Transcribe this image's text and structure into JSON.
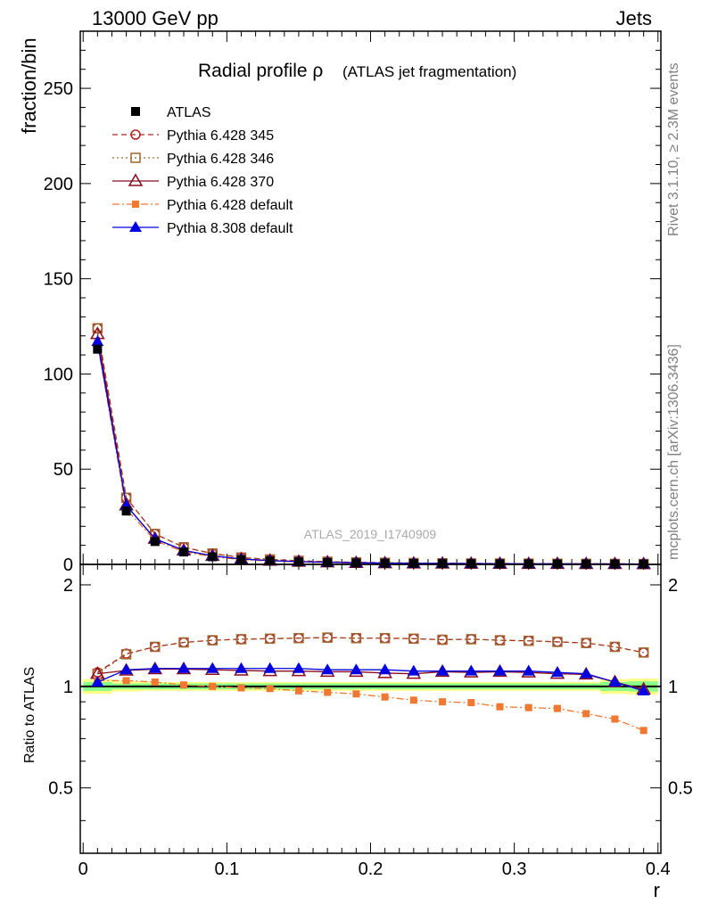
{
  "header": {
    "energy_label": "13000 GeV pp",
    "process_label": "Jets"
  },
  "side_text": {
    "rivet": "Rivet 3.1.10, ≥ 2.3M events",
    "mcplots": "mcplots.cern.ch [arXiv:1306.3436]"
  },
  "watermark": "ATLAS_2019_I1740909",
  "chart_data": [
    {
      "type": "line",
      "title": "Radial profile ρ",
      "subtitle": "(ATLAS jet fragmentation)",
      "xlabel": "r",
      "ylabel": "fraction/bin",
      "xlim": [
        -0.002,
        0.402
      ],
      "ylim": [
        0,
        280
      ],
      "x_ticks": [
        0,
        0.1,
        0.2,
        0.3,
        0.4
      ],
      "x_tick_labels": [
        "0",
        "0.1",
        "0.2",
        "0.3",
        "0.4"
      ],
      "y_ticks": [
        0,
        50,
        100,
        150,
        200,
        250
      ],
      "y_tick_labels": [
        "0",
        "50",
        "100",
        "150",
        "200",
        "250"
      ],
      "legend_position": "top-left",
      "x": [
        0.01,
        0.03,
        0.05,
        0.07,
        0.09,
        0.11,
        0.13,
        0.15,
        0.17,
        0.19,
        0.21,
        0.23,
        0.25,
        0.27,
        0.29,
        0.31,
        0.33,
        0.35,
        0.37,
        0.39
      ],
      "series": [
        {
          "name": "ATLAS",
          "color": "#000000",
          "marker": "square-filled",
          "line": "none",
          "values": [
            113,
            28,
            12,
            6.5,
            4,
            2.5,
            1.8,
            1.3,
            1.0,
            0.75,
            0.6,
            0.5,
            0.42,
            0.36,
            0.32,
            0.28,
            0.25,
            0.22,
            0.2,
            0.18
          ]
        },
        {
          "name": "Pythia 6.428 345",
          "color": "#b02020",
          "marker": "circle-open",
          "line": "dashed",
          "values": [
            124,
            35,
            16,
            9,
            5.7,
            3.6,
            2.6,
            1.9,
            1.4,
            1.05,
            0.86,
            0.71,
            0.59,
            0.51,
            0.45,
            0.39,
            0.35,
            0.3,
            0.27,
            0.23
          ]
        },
        {
          "name": "Pythia 6.428 346",
          "color": "#a0662e",
          "marker": "square-open",
          "line": "dotted",
          "values": [
            124,
            35,
            16,
            9,
            5.7,
            3.6,
            2.6,
            1.9,
            1.4,
            1.05,
            0.86,
            0.71,
            0.59,
            0.51,
            0.45,
            0.39,
            0.35,
            0.3,
            0.27,
            0.23
          ]
        },
        {
          "name": "Pythia 6.428 370",
          "color": "#8b0a1e",
          "marker": "triangle-open",
          "line": "solid",
          "values": [
            121,
            31,
            13.5,
            7.3,
            4.5,
            2.8,
            2.0,
            1.45,
            1.1,
            0.84,
            0.66,
            0.55,
            0.47,
            0.4,
            0.36,
            0.31,
            0.28,
            0.24,
            0.21,
            0.18
          ]
        },
        {
          "name": "Pythia 6.428 default",
          "color": "#f07830",
          "marker": "square-filled-small",
          "line": "dashdot",
          "values": [
            116,
            29,
            12.5,
            6.6,
            4.0,
            2.5,
            1.75,
            1.27,
            0.96,
            0.71,
            0.56,
            0.46,
            0.38,
            0.33,
            0.28,
            0.25,
            0.22,
            0.19,
            0.17,
            0.14
          ]
        },
        {
          "name": "Pythia 8.308 default",
          "color": "#0000e0",
          "marker": "triangle-filled",
          "line": "solid",
          "values": [
            117,
            31,
            13.4,
            7.3,
            4.5,
            2.8,
            2.0,
            1.45,
            1.1,
            0.84,
            0.67,
            0.56,
            0.47,
            0.4,
            0.36,
            0.31,
            0.28,
            0.24,
            0.2,
            0.18
          ]
        }
      ]
    },
    {
      "type": "line",
      "title": "",
      "xlabel": "r",
      "ylabel": "Ratio to ATLAS",
      "xlim": [
        -0.002,
        0.402
      ],
      "ylim": [
        0.32,
        2.3
      ],
      "y_ticks": [
        0.5,
        1,
        2
      ],
      "y_tick_labels": [
        "0.5",
        "1",
        "2"
      ],
      "band_colors": [
        "#ffff88",
        "#88ff88"
      ],
      "x": [
        0.01,
        0.03,
        0.05,
        0.07,
        0.09,
        0.11,
        0.13,
        0.15,
        0.17,
        0.19,
        0.21,
        0.23,
        0.25,
        0.27,
        0.29,
        0.31,
        0.33,
        0.35,
        0.37,
        0.39
      ],
      "series": [
        {
          "name": "Pythia 6.428 345",
          "values": [
            1.1,
            1.25,
            1.31,
            1.35,
            1.37,
            1.38,
            1.385,
            1.39,
            1.395,
            1.39,
            1.39,
            1.385,
            1.375,
            1.38,
            1.37,
            1.365,
            1.355,
            1.345,
            1.31,
            1.26
          ]
        },
        {
          "name": "Pythia 6.428 346",
          "values": [
            1.09,
            1.245,
            1.31,
            1.35,
            1.37,
            1.38,
            1.385,
            1.39,
            1.395,
            1.39,
            1.39,
            1.385,
            1.375,
            1.38,
            1.37,
            1.365,
            1.355,
            1.345,
            1.31,
            1.26
          ]
        },
        {
          "name": "Pythia 6.428 370",
          "values": [
            1.09,
            1.115,
            1.125,
            1.125,
            1.12,
            1.115,
            1.11,
            1.11,
            1.105,
            1.105,
            1.095,
            1.09,
            1.105,
            1.1,
            1.105,
            1.1,
            1.09,
            1.085,
            1.03,
            0.98
          ]
        },
        {
          "name": "Pythia 6.428 default",
          "values": [
            1.04,
            1.04,
            1.03,
            1.01,
            1.0,
            0.99,
            0.985,
            0.97,
            0.96,
            0.95,
            0.93,
            0.91,
            0.9,
            0.895,
            0.87,
            0.865,
            0.86,
            0.83,
            0.8,
            0.74
          ]
        },
        {
          "name": "Pythia 8.308 default",
          "values": [
            1.03,
            1.12,
            1.13,
            1.13,
            1.13,
            1.13,
            1.13,
            1.13,
            1.12,
            1.12,
            1.12,
            1.11,
            1.11,
            1.11,
            1.11,
            1.11,
            1.1,
            1.09,
            1.03,
            0.97
          ]
        }
      ],
      "band_upper_inner": [
        1.03,
        1.02,
        1.02,
        1.02,
        1.02,
        1.02,
        1.02,
        1.02,
        1.02,
        1.02,
        1.02,
        1.02,
        1.02,
        1.02,
        1.02,
        1.02,
        1.02,
        1.02,
        1.03,
        1.035
      ],
      "band_lower_inner": [
        0.97,
        0.98,
        0.98,
        0.98,
        0.98,
        0.98,
        0.98,
        0.98,
        0.98,
        0.98,
        0.98,
        0.98,
        0.98,
        0.98,
        0.98,
        0.98,
        0.98,
        0.98,
        0.97,
        0.965
      ],
      "band_upper_outer": [
        1.05,
        1.035,
        1.03,
        1.03,
        1.03,
        1.03,
        1.03,
        1.03,
        1.03,
        1.03,
        1.03,
        1.03,
        1.03,
        1.03,
        1.03,
        1.03,
        1.03,
        1.03,
        1.05,
        1.055
      ],
      "band_lower_outer": [
        0.95,
        0.965,
        0.97,
        0.97,
        0.97,
        0.97,
        0.97,
        0.97,
        0.97,
        0.97,
        0.97,
        0.97,
        0.97,
        0.97,
        0.97,
        0.97,
        0.97,
        0.97,
        0.95,
        0.945
      ]
    }
  ]
}
